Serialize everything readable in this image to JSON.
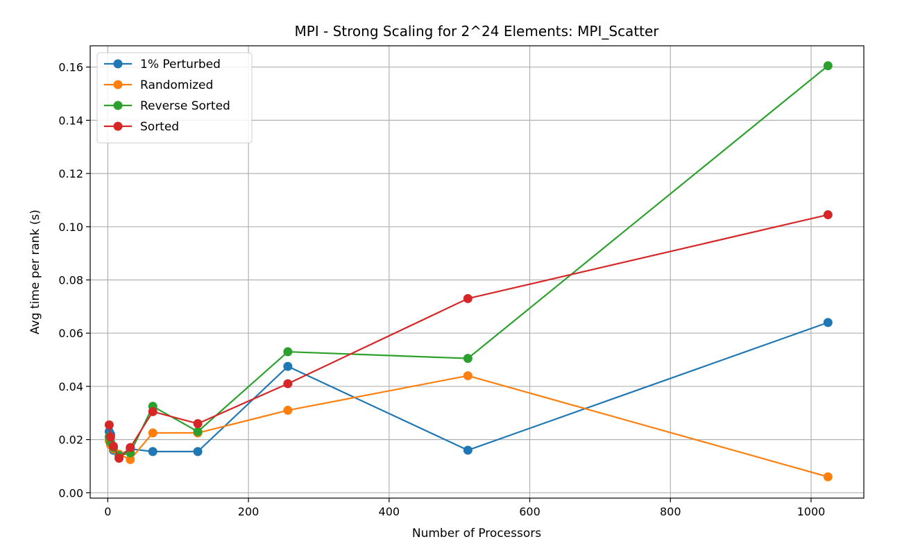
{
  "chart_data": {
    "type": "line",
    "title": "MPI - Strong Scaling for 2^24 Elements: MPI_Scatter",
    "xlabel": "Number of Processors",
    "ylabel": "Avg time per rank (s)",
    "xlim": [
      -25,
      1075
    ],
    "ylim": [
      -0.002,
      0.168
    ],
    "xticks": [
      0,
      200,
      400,
      600,
      800,
      1000
    ],
    "xtick_labels": [
      "0",
      "200",
      "400",
      "600",
      "800",
      "1000"
    ],
    "yticks": [
      0.0,
      0.02,
      0.04,
      0.06,
      0.08,
      0.1,
      0.12,
      0.14,
      0.16
    ],
    "ytick_labels": [
      "0.00",
      "0.02",
      "0.04",
      "0.06",
      "0.08",
      "0.10",
      "0.12",
      "0.14",
      "0.16"
    ],
    "grid": true,
    "legend_position": "top-left",
    "x": [
      2,
      4,
      8,
      16,
      32,
      64,
      128,
      256,
      512,
      1024
    ],
    "series": [
      {
        "name": "1% Perturbed",
        "color": "#1f77b4",
        "values": [
          0.023,
          0.022,
          0.016,
          0.014,
          0.0165,
          0.0155,
          0.0155,
          0.0475,
          0.016,
          0.064
        ]
      },
      {
        "name": "Randomized",
        "color": "#ff7f0e",
        "values": [
          0.0195,
          0.018,
          0.0165,
          0.0145,
          0.0125,
          0.0225,
          0.0225,
          0.031,
          0.044,
          0.006
        ]
      },
      {
        "name": "Reverse Sorted",
        "color": "#2ca02c",
        "values": [
          0.021,
          0.019,
          0.017,
          0.014,
          0.015,
          0.0325,
          0.023,
          0.053,
          0.0505,
          0.1605
        ]
      },
      {
        "name": "Sorted",
        "color": "#d62728",
        "values": [
          0.0255,
          0.021,
          0.0175,
          0.013,
          0.017,
          0.0305,
          0.026,
          0.041,
          0.073,
          0.1045
        ]
      }
    ]
  }
}
